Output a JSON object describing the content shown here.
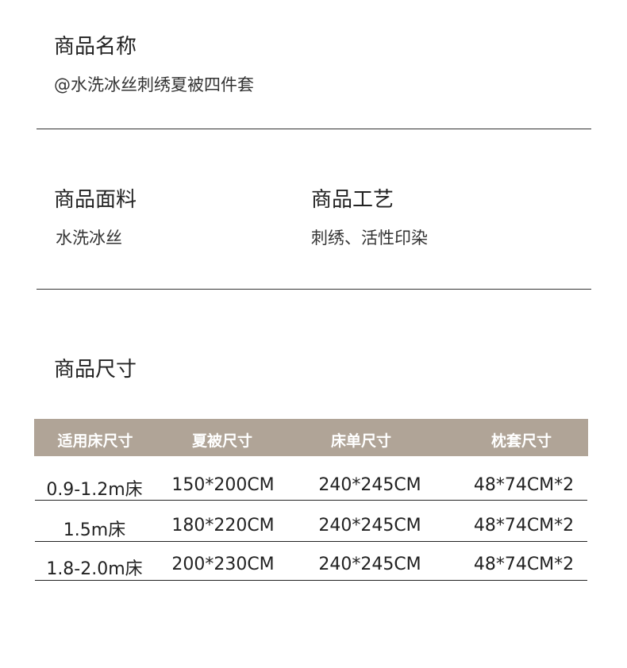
{
  "name": {
    "label": "商品名称",
    "value": "@水洗冰丝刺绣夏被四件套"
  },
  "fabric": {
    "label": "商品面料",
    "value": "水洗冰丝"
  },
  "craft": {
    "label": "商品工艺",
    "value": "刺绣、活性印染"
  },
  "size": {
    "label": "商品尺寸",
    "table": {
      "header_color": "#b0a497",
      "columns": [
        "适用床尺寸",
        "夏被尺寸",
        "床单尺寸",
        "枕套尺寸"
      ],
      "rows": [
        [
          "0.9-1.2m床",
          "150*200CM",
          "240*245CM",
          "48*74CM*2"
        ],
        [
          "1.5m床",
          "180*220CM",
          "240*245CM",
          "48*74CM*2"
        ],
        [
          "1.8-2.0m床",
          "200*230CM",
          "240*245CM",
          "48*74CM*2"
        ]
      ]
    }
  }
}
